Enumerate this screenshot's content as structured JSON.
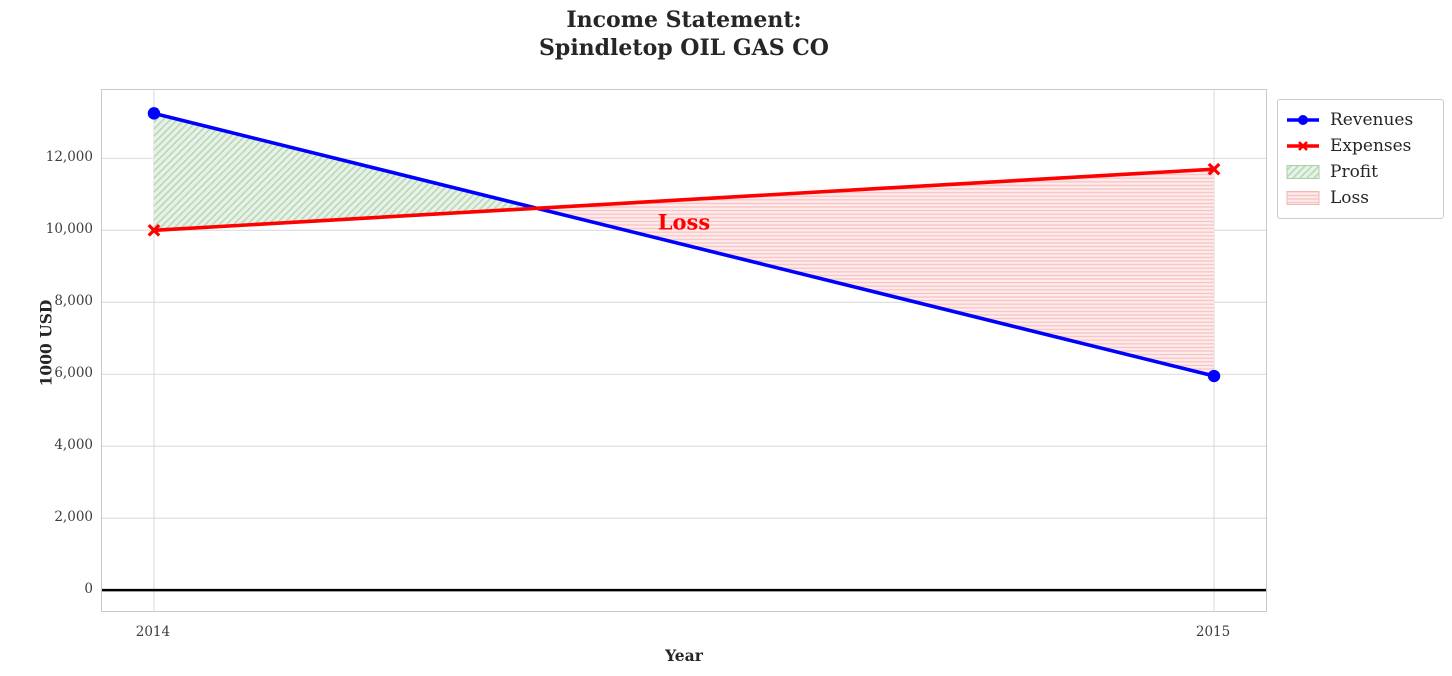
{
  "title": {
    "line1": "Income Statement:",
    "line2": "Spindletop OIL GAS CO"
  },
  "chart_data": {
    "type": "line",
    "x": [
      2014,
      2015
    ],
    "series": [
      {
        "name": "Revenues",
        "values": [
          13250,
          5950
        ],
        "color": "#0000ff",
        "marker": "circle"
      },
      {
        "name": "Expenses",
        "values": [
          10000,
          11700
        ],
        "color": "#ff0000",
        "marker": "x"
      }
    ],
    "fills": [
      {
        "name": "Profit",
        "region": "revenues_above_expenses",
        "face": "#e7f2e7",
        "hatch_color": "#b9d8b9",
        "hatch": "diagonal"
      },
      {
        "name": "Loss",
        "region": "expenses_above_revenues",
        "face": "#feebeb",
        "hatch_color": "#f8c3c3",
        "hatch": "horizontal"
      }
    ],
    "annotations": [
      {
        "text": "Loss",
        "x": 2014.5,
        "y": 10230,
        "color": "#ff0000"
      }
    ],
    "xlabel": "Year",
    "ylabel": "1000 USD",
    "xticks": [
      2014,
      2015
    ],
    "yticks": [
      0,
      2000,
      4000,
      6000,
      8000,
      10000,
      12000
    ],
    "ytick_labels": [
      "0",
      "2,000",
      "4,000",
      "6,000",
      "8,000",
      "10,000",
      "12,000"
    ],
    "xlim": [
      2013.951,
      2015.049
    ],
    "ylim": [
      -580,
      13900
    ],
    "zero_line": 0,
    "grid": true,
    "grid_color": "#dcdcdc",
    "legend_position": "upper right, outside axes"
  }
}
